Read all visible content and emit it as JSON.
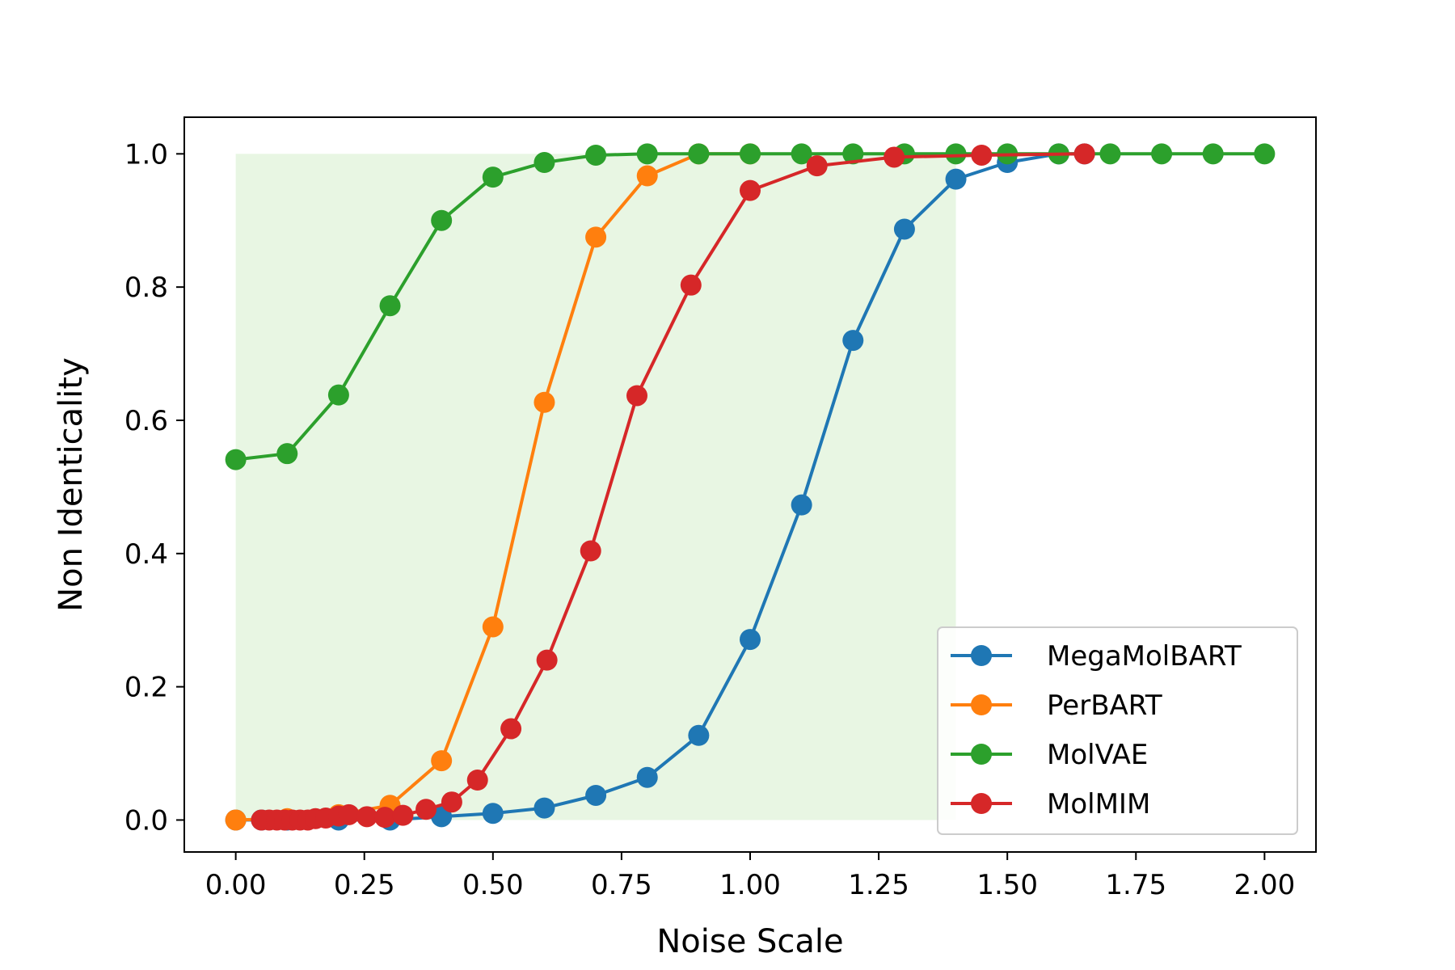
{
  "chart_data": {
    "type": "line",
    "title": "",
    "xlabel": "Noise Scale",
    "ylabel": "Non Identicality",
    "xlim": [
      -0.1,
      2.1
    ],
    "ylim": [
      -0.048,
      1.055
    ],
    "x_ticks": [
      "0.00",
      "0.25",
      "0.50",
      "0.75",
      "1.00",
      "1.25",
      "1.50",
      "1.75",
      "2.00"
    ],
    "y_ticks": [
      "0.0",
      "0.2",
      "0.4",
      "0.6",
      "0.8",
      "1.0"
    ],
    "grid": false,
    "legend_position": "lower-right",
    "shaded_region": {
      "x": [
        0.0,
        1.4
      ],
      "y": [
        0.0,
        1.0
      ],
      "color": "#e8f6e3"
    },
    "series": [
      {
        "name": "MegaMolBART",
        "color": "#1f77b4",
        "x": [
          0.0,
          0.05,
          0.1,
          0.2,
          0.3,
          0.4,
          0.5,
          0.6,
          0.7,
          0.8,
          0.9,
          1.0,
          1.1,
          1.2,
          1.3,
          1.4,
          1.5,
          1.6,
          1.65
        ],
        "y": [
          0.0,
          0.0,
          0.0,
          0.0,
          0.0,
          0.005,
          0.01,
          0.018,
          0.037,
          0.064,
          0.127,
          0.271,
          0.473,
          0.72,
          0.887,
          0.962,
          0.987,
          1.0,
          1.0
        ]
      },
      {
        "name": "PerBART",
        "color": "#ff7f0e",
        "x": [
          0.0,
          0.1,
          0.2,
          0.3,
          0.4,
          0.5,
          0.6,
          0.7,
          0.8,
          0.9,
          1.0
        ],
        "y": [
          0.0,
          0.002,
          0.008,
          0.022,
          0.089,
          0.29,
          0.627,
          0.875,
          0.967,
          1.0,
          1.0
        ]
      },
      {
        "name": "MolVAE",
        "color": "#2ca02c",
        "x": [
          0.0,
          0.1,
          0.2,
          0.3,
          0.4,
          0.5,
          0.6,
          0.7,
          0.8,
          0.9,
          1.0,
          1.1,
          1.2,
          1.3,
          1.4,
          1.5,
          1.6,
          1.7,
          1.8,
          1.9,
          2.0
        ],
        "y": [
          0.541,
          0.55,
          0.638,
          0.772,
          0.9,
          0.965,
          0.987,
          0.998,
          1.0,
          1.0,
          1.0,
          1.0,
          1.0,
          1.0,
          1.0,
          1.0,
          1.0,
          1.0,
          1.0,
          1.0,
          1.0
        ]
      },
      {
        "name": "MolMIM",
        "color": "#d62728",
        "x": [
          0.05,
          0.065,
          0.08,
          0.095,
          0.11,
          0.125,
          0.14,
          0.155,
          0.175,
          0.2,
          0.22,
          0.255,
          0.29,
          0.325,
          0.37,
          0.42,
          0.47,
          0.535,
          0.605,
          0.69,
          0.78,
          0.885,
          1.0,
          1.13,
          1.28,
          1.45,
          1.65
        ],
        "y": [
          0.0,
          0.0,
          0.0,
          0.0,
          0.0,
          0.0,
          0.0,
          0.002,
          0.003,
          0.006,
          0.008,
          0.005,
          0.004,
          0.007,
          0.016,
          0.027,
          0.06,
          0.137,
          0.24,
          0.404,
          0.637,
          0.803,
          0.945,
          0.982,
          0.995,
          0.998,
          1.0
        ]
      }
    ]
  }
}
